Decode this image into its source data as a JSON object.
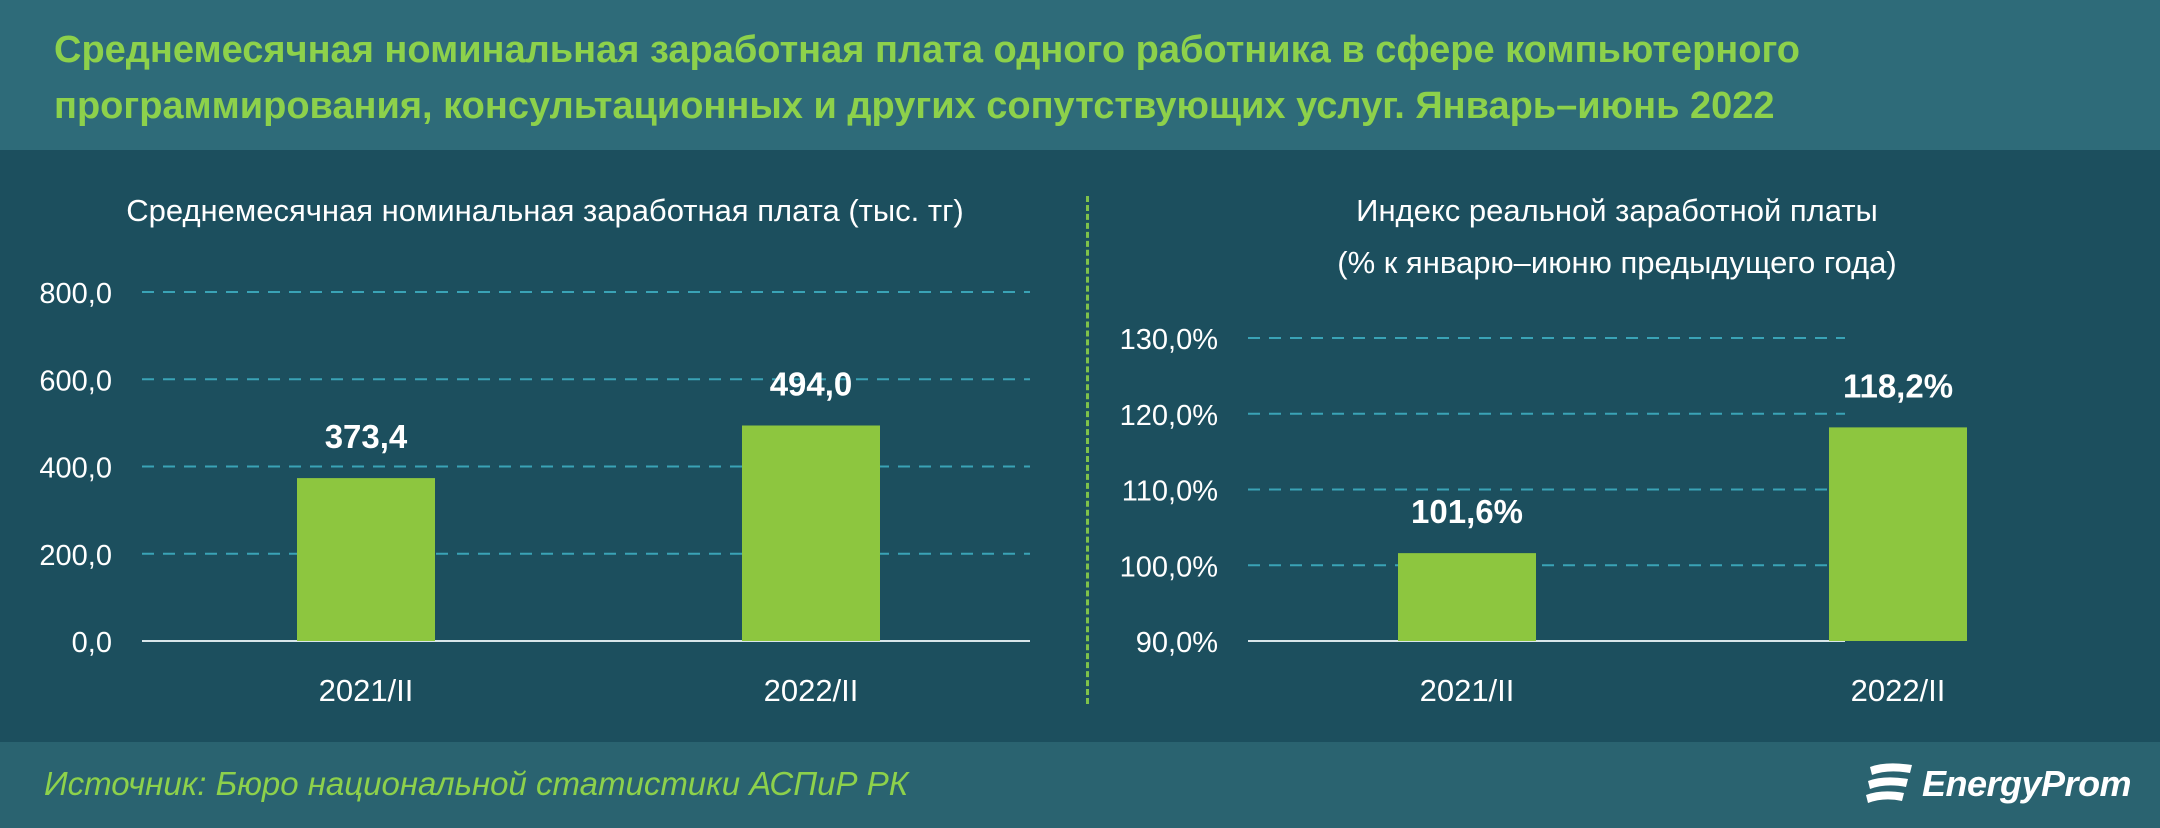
{
  "title": "Среднемесячная номинальная заработная плата одного работника в сфере компьютерного программирования, консультационных и других сопутствующих услуг. Январь–июнь 2022",
  "source": "Источник: Бюро национальной статистики АСПиР РК",
  "logo": {
    "text": "EnergyProm",
    "icon": "energyprom-logo-icon"
  },
  "colors": {
    "background": "#1c4f5e",
    "header": "#2e6b79",
    "bar": "#8dc63f",
    "accent": "#8dd14b",
    "grid": "#3aa3b6",
    "text": "#ffffff"
  },
  "chart_data": [
    {
      "type": "bar",
      "title": "Среднемесячная номинальная заработная плата (тыс. тг)",
      "subtitle": "",
      "categories": [
        "2021/II",
        "2022/II"
      ],
      "values": [
        373.4,
        494.0
      ],
      "value_labels": [
        "373,4",
        "494,0"
      ],
      "ylim": [
        0,
        800
      ],
      "yticks": [
        0,
        200,
        400,
        600,
        800
      ],
      "ytick_labels": [
        "0,0",
        "200,0",
        "400,0",
        "600,0",
        "800,0"
      ],
      "grid": true
    },
    {
      "type": "bar",
      "title": "Индекс реальной заработной платы",
      "subtitle": "(% к январю–июню предыдущего года)",
      "categories": [
        "2021/II",
        "2022/II"
      ],
      "values": [
        101.6,
        118.2
      ],
      "value_labels": [
        "101,6%",
        "118,2%"
      ],
      "ylim": [
        90,
        130
      ],
      "yticks": [
        90,
        100,
        110,
        120,
        130
      ],
      "ytick_labels": [
        "90,0%",
        "100,0%",
        "110,0%",
        "120,0%",
        "130,0%"
      ],
      "grid": true
    }
  ]
}
